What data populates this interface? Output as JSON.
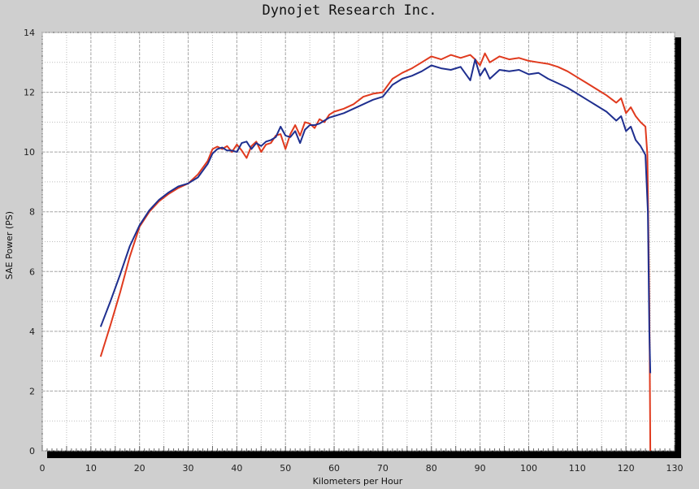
{
  "chart_data": {
    "type": "line",
    "title": "Dynojet  Research  Inc.",
    "xlabel": "Kilometers per Hour",
    "ylabel": "SAE Power (PS)",
    "xlim": [
      0,
      130
    ],
    "ylim": [
      0,
      14
    ],
    "x_ticks": [
      0,
      10,
      20,
      30,
      40,
      50,
      60,
      70,
      80,
      90,
      100,
      110,
      120,
      130
    ],
    "y_ticks": [
      0,
      2,
      4,
      6,
      8,
      10,
      12,
      14
    ],
    "grid": true,
    "legend": "none",
    "series": [
      {
        "color": "#e03a1e",
        "points": [
          [
            12,
            3.15
          ],
          [
            14,
            4.2
          ],
          [
            16,
            5.3
          ],
          [
            18,
            6.5
          ],
          [
            20,
            7.5
          ],
          [
            22,
            8.0
          ],
          [
            24,
            8.35
          ],
          [
            26,
            8.6
          ],
          [
            28,
            8.8
          ],
          [
            30,
            8.95
          ],
          [
            32,
            9.25
          ],
          [
            34,
            9.7
          ],
          [
            35,
            10.1
          ],
          [
            36,
            10.18
          ],
          [
            37,
            10.1
          ],
          [
            38,
            10.2
          ],
          [
            39,
            10.0
          ],
          [
            40,
            10.25
          ],
          [
            41,
            10.05
          ],
          [
            42,
            9.8
          ],
          [
            43,
            10.2
          ],
          [
            44,
            10.35
          ],
          [
            45,
            10.0
          ],
          [
            46,
            10.25
          ],
          [
            47,
            10.3
          ],
          [
            48,
            10.55
          ],
          [
            49,
            10.6
          ],
          [
            50,
            10.1
          ],
          [
            51,
            10.6
          ],
          [
            52,
            10.9
          ],
          [
            53,
            10.55
          ],
          [
            54,
            11.0
          ],
          [
            55,
            10.95
          ],
          [
            56,
            10.8
          ],
          [
            57,
            11.1
          ],
          [
            58,
            11.0
          ],
          [
            59,
            11.25
          ],
          [
            60,
            11.35
          ],
          [
            62,
            11.45
          ],
          [
            64,
            11.6
          ],
          [
            66,
            11.85
          ],
          [
            68,
            11.95
          ],
          [
            70,
            12.0
          ],
          [
            72,
            12.45
          ],
          [
            74,
            12.65
          ],
          [
            76,
            12.8
          ],
          [
            78,
            13.0
          ],
          [
            80,
            13.2
          ],
          [
            82,
            13.1
          ],
          [
            84,
            13.25
          ],
          [
            86,
            13.15
          ],
          [
            88,
            13.25
          ],
          [
            89,
            13.1
          ],
          [
            90,
            12.9
          ],
          [
            91,
            13.3
          ],
          [
            92,
            13.0
          ],
          [
            94,
            13.2
          ],
          [
            96,
            13.1
          ],
          [
            98,
            13.15
          ],
          [
            100,
            13.05
          ],
          [
            102,
            13.0
          ],
          [
            104,
            12.95
          ],
          [
            106,
            12.85
          ],
          [
            108,
            12.7
          ],
          [
            110,
            12.5
          ],
          [
            112,
            12.3
          ],
          [
            114,
            12.1
          ],
          [
            116,
            11.9
          ],
          [
            118,
            11.65
          ],
          [
            119,
            11.8
          ],
          [
            120,
            11.3
          ],
          [
            121,
            11.5
          ],
          [
            122,
            11.2
          ],
          [
            123,
            11.0
          ],
          [
            124,
            10.85
          ],
          [
            124.4,
            9.9
          ],
          [
            124.8,
            5.0
          ],
          [
            125,
            0.0
          ]
        ]
      },
      {
        "color": "#1f2f8f",
        "points": [
          [
            12,
            4.15
          ],
          [
            14,
            5.0
          ],
          [
            16,
            5.9
          ],
          [
            18,
            6.85
          ],
          [
            20,
            7.55
          ],
          [
            22,
            8.05
          ],
          [
            24,
            8.4
          ],
          [
            26,
            8.65
          ],
          [
            28,
            8.85
          ],
          [
            30,
            8.95
          ],
          [
            32,
            9.15
          ],
          [
            34,
            9.6
          ],
          [
            35,
            9.95
          ],
          [
            36,
            10.1
          ],
          [
            37,
            10.15
          ],
          [
            38,
            10.05
          ],
          [
            39,
            10.05
          ],
          [
            40,
            10.0
          ],
          [
            41,
            10.3
          ],
          [
            42,
            10.35
          ],
          [
            43,
            10.1
          ],
          [
            44,
            10.3
          ],
          [
            45,
            10.2
          ],
          [
            46,
            10.35
          ],
          [
            47,
            10.4
          ],
          [
            48,
            10.5
          ],
          [
            49,
            10.85
          ],
          [
            50,
            10.55
          ],
          [
            51,
            10.5
          ],
          [
            52,
            10.7
          ],
          [
            53,
            10.3
          ],
          [
            54,
            10.75
          ],
          [
            55,
            10.9
          ],
          [
            56,
            10.9
          ],
          [
            57,
            10.95
          ],
          [
            58,
            11.05
          ],
          [
            59,
            11.15
          ],
          [
            60,
            11.2
          ],
          [
            62,
            11.3
          ],
          [
            64,
            11.45
          ],
          [
            66,
            11.6
          ],
          [
            68,
            11.75
          ],
          [
            70,
            11.85
          ],
          [
            72,
            12.25
          ],
          [
            74,
            12.45
          ],
          [
            76,
            12.55
          ],
          [
            78,
            12.7
          ],
          [
            80,
            12.9
          ],
          [
            82,
            12.8
          ],
          [
            84,
            12.75
          ],
          [
            86,
            12.85
          ],
          [
            88,
            12.4
          ],
          [
            89,
            13.1
          ],
          [
            90,
            12.55
          ],
          [
            91,
            12.8
          ],
          [
            92,
            12.45
          ],
          [
            94,
            12.75
          ],
          [
            96,
            12.7
          ],
          [
            98,
            12.75
          ],
          [
            100,
            12.6
          ],
          [
            102,
            12.65
          ],
          [
            104,
            12.45
          ],
          [
            106,
            12.3
          ],
          [
            108,
            12.15
          ],
          [
            110,
            11.95
          ],
          [
            112,
            11.75
          ],
          [
            114,
            11.55
          ],
          [
            116,
            11.35
          ],
          [
            118,
            11.05
          ],
          [
            119,
            11.2
          ],
          [
            120,
            10.7
          ],
          [
            121,
            10.85
          ],
          [
            122,
            10.4
          ],
          [
            123,
            10.2
          ],
          [
            124,
            9.9
          ],
          [
            124.5,
            8.0
          ],
          [
            124.8,
            4.0
          ],
          [
            125,
            2.6
          ]
        ]
      }
    ]
  }
}
